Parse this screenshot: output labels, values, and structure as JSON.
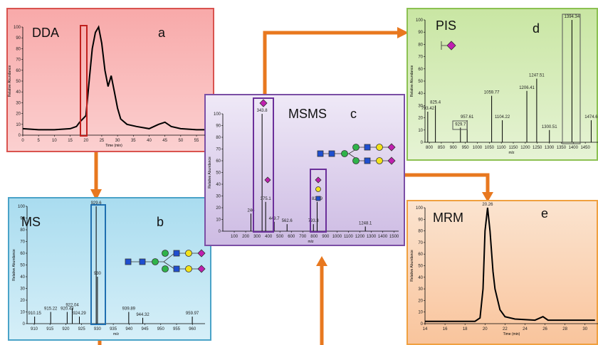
{
  "chart_data": [
    {
      "type": "line",
      "title": "DDA",
      "annotation": "a",
      "x_label": "Time (min)",
      "y_label": "Relative Abundance",
      "color": "#000000",
      "x": [
        0,
        5,
        10,
        15,
        17,
        18,
        19,
        20,
        21,
        22,
        23,
        24,
        25,
        26,
        27,
        28,
        29,
        30,
        31,
        33,
        36,
        40,
        43,
        45,
        47,
        50,
        55,
        57.5
      ],
      "values": [
        6,
        5,
        5,
        6,
        8,
        12,
        15,
        18,
        50,
        80,
        95,
        100,
        85,
        60,
        45,
        55,
        40,
        25,
        15,
        10,
        8,
        6,
        10,
        12,
        8,
        6,
        5,
        5
      ],
      "xlim": [
        0,
        57.7
      ],
      "xticks": [
        0,
        5,
        10,
        15,
        20,
        25,
        30,
        35,
        40,
        45,
        50,
        55
      ],
      "ylim": [
        0,
        100
      ],
      "yticks": [
        0,
        10,
        20,
        30,
        40,
        50,
        60,
        70,
        80,
        90,
        100
      ]
    },
    {
      "type": "stem",
      "title": "MS",
      "annotation": "b",
      "x_label": "m/z",
      "y_label": "Relative Abundance",
      "color": "#000000",
      "x": [
        910.15,
        915.22,
        920.43,
        922.04,
        924.29,
        929.6,
        930,
        939.89,
        944.32,
        959.97
      ],
      "values": [
        6,
        10,
        10,
        13,
        6,
        100,
        40,
        10,
        5,
        6
      ],
      "xlim": [
        907.75,
        964
      ],
      "xticks": [
        910,
        915,
        920,
        925,
        930,
        935,
        940,
        945,
        950,
        955,
        960
      ],
      "ylim": [
        0,
        100
      ],
      "yticks": [
        0,
        10,
        20,
        30,
        40,
        50,
        60,
        70,
        80,
        90,
        100
      ]
    },
    {
      "type": "stem",
      "title": "MSMS",
      "annotation": "c",
      "x_label": "m/z",
      "y_label": "Relative Abundance",
      "color": "#000000",
      "x": [
        246,
        343.8,
        375.1,
        449.7,
        562.6,
        793.3,
        825.9,
        1248.1
      ],
      "values": [
        15,
        100,
        25,
        8,
        6,
        6,
        25,
        4
      ],
      "xlim": [
        0,
        1540
      ],
      "xticks": [
        100,
        200,
        300,
        400,
        500,
        600,
        700,
        800,
        900,
        1000,
        1100,
        1200,
        1300,
        1400,
        1500
      ],
      "ylim": [
        0,
        100
      ],
      "yticks": [
        0,
        10,
        20,
        30,
        40,
        50,
        60,
        70,
        80,
        90,
        100
      ]
    },
    {
      "type": "stem",
      "title": "PIS",
      "annotation": "d",
      "x_label": "m/z",
      "y_label": "Relative Abundance",
      "color": "#000000",
      "x": [
        793.42,
        825.4,
        929.7,
        957.61,
        1059.77,
        1104.22,
        1206.41,
        1247.51,
        1300.51,
        1394.34,
        1474.6
      ],
      "values": [
        25,
        30,
        12,
        18,
        38,
        18,
        42,
        52,
        10,
        100,
        18
      ],
      "xlim": [
        782,
        1503
      ],
      "xticks": [
        800,
        850,
        900,
        950,
        1000,
        1050,
        1100,
        1150,
        1200,
        1250,
        1300,
        1350,
        1400,
        1450
      ],
      "ylim": [
        0,
        100
      ],
      "yticks": [
        0,
        10,
        20,
        30,
        40,
        50,
        60,
        70,
        80,
        90,
        100
      ]
    },
    {
      "type": "line",
      "title": "MRM",
      "annotation": "e",
      "x_label": "Time (min)",
      "y_label": "Relative Abundance",
      "color": "#000000",
      "x": [
        14,
        19,
        19.5,
        19.8,
        20,
        20.26,
        20.5,
        20.8,
        21,
        21.5,
        22,
        23,
        25,
        25.8,
        26.3,
        28,
        30,
        31
      ],
      "values": [
        2,
        2,
        5,
        30,
        80,
        100,
        80,
        45,
        30,
        12,
        6,
        4,
        3,
        6,
        3,
        3,
        3,
        3
      ],
      "peak_index": 5,
      "xlim": [
        14,
        31.3
      ],
      "xticks": [
        14,
        16,
        18,
        20,
        22,
        24,
        26,
        28,
        30
      ],
      "ylim": [
        0,
        100
      ],
      "yticks": [
        0,
        10,
        20,
        30,
        40,
        50,
        60,
        70,
        80,
        90,
        100
      ]
    }
  ]
}
